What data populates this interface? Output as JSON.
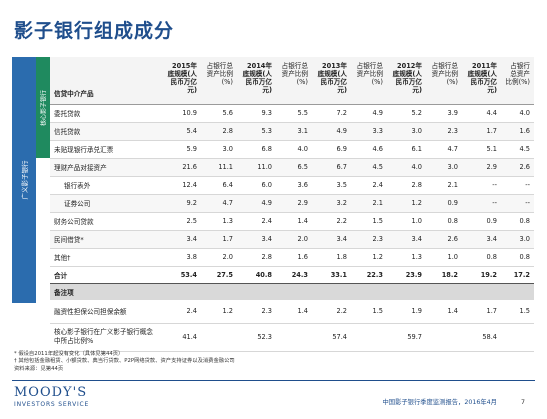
{
  "title": "影子银行组成成分",
  "side_labels": {
    "outer": "广义影子银行",
    "inner": "核心影子银行"
  },
  "header": {
    "label": "信贷中介产品",
    "columns": [
      {
        "text": "2015年底规模(人民币万亿元)",
        "year": true
      },
      {
        "text": "占银行总资产比例(%)",
        "year": false
      },
      {
        "text": "2014年底规模(人民币万亿元)",
        "year": true
      },
      {
        "text": "占银行总资产比例(%)",
        "year": false
      },
      {
        "text": "2013年底规模(人民币万亿元)",
        "year": true
      },
      {
        "text": "占银行总资产比例(%)",
        "year": false
      },
      {
        "text": "2012年底规模(人民币万亿元)",
        "year": true
      },
      {
        "text": "占银行总资产比例(%)",
        "year": false
      },
      {
        "text": "2011年底规模(人民币万亿元)",
        "year": true
      },
      {
        "text": "占银行总资产比例(%)",
        "year": false
      }
    ]
  },
  "rows": [
    {
      "label": "委托贷款",
      "values": [
        "10.9",
        "5.6",
        "9.3",
        "5.5",
        "7.2",
        "4.9",
        "5.2",
        "3.9",
        "4.4",
        "4.0"
      ]
    },
    {
      "label": "信托贷款",
      "values": [
        "5.4",
        "2.8",
        "5.3",
        "3.1",
        "4.9",
        "3.3",
        "3.0",
        "2.3",
        "1.7",
        "1.6"
      ]
    },
    {
      "label": "未贴现银行承兑汇票",
      "values": [
        "5.9",
        "3.0",
        "6.8",
        "4.0",
        "6.9",
        "4.6",
        "6.1",
        "4.7",
        "5.1",
        "4.5"
      ]
    },
    {
      "label": "理财产品对接资产",
      "values": [
        "21.6",
        "11.1",
        "11.0",
        "6.5",
        "6.7",
        "4.5",
        "4.0",
        "3.0",
        "2.9",
        "2.6"
      ]
    },
    {
      "label": "银行表外",
      "indent": true,
      "values": [
        "12.4",
        "6.4",
        "6.0",
        "3.6",
        "3.5",
        "2.4",
        "2.8",
        "2.1",
        "--",
        "--"
      ]
    },
    {
      "label": "证券公司",
      "indent": true,
      "values": [
        "9.2",
        "4.7",
        "4.9",
        "2.9",
        "3.2",
        "2.1",
        "1.2",
        "0.9",
        "--",
        "--"
      ]
    },
    {
      "label": "财务公司贷款",
      "values": [
        "2.5",
        "1.3",
        "2.4",
        "1.4",
        "2.2",
        "1.5",
        "1.0",
        "0.8",
        "0.9",
        "0.8"
      ]
    },
    {
      "label": "民间借贷*",
      "values": [
        "3.4",
        "1.7",
        "3.4",
        "2.0",
        "3.4",
        "2.3",
        "3.4",
        "2.6",
        "3.4",
        "3.0"
      ]
    },
    {
      "label": "其他†",
      "values": [
        "3.8",
        "2.0",
        "2.8",
        "1.6",
        "1.8",
        "1.2",
        "1.3",
        "1.0",
        "0.8",
        "0.8"
      ]
    }
  ],
  "total": {
    "label": "合计",
    "values": [
      "53.4",
      "27.5",
      "40.8",
      "24.3",
      "33.1",
      "22.3",
      "23.9",
      "18.2",
      "19.2",
      "17.2"
    ]
  },
  "memo_header": "备注项",
  "memo_rows": [
    {
      "label": "融资性担保公司担保余额",
      "values": [
        "2.4",
        "1.2",
        "2.3",
        "1.4",
        "2.2",
        "1.5",
        "1.9",
        "1.4",
        "1.7",
        "1.5"
      ]
    },
    {
      "label": "核心影子银行在广义影子银行概念中所占比例%",
      "values": [
        "41.4",
        "",
        "52.3",
        "",
        "57.4",
        "",
        "59.7",
        "",
        "58.4",
        ""
      ]
    }
  ],
  "notes": [
    "* 假设自2011年起没有变化（具体见第44页）",
    "† 其他包括金融租赁、小额贷款、典当行贷款、P2P网络贷款、资产支持证券以及消费金融公司",
    "资料来源：见第44页"
  ],
  "brand": {
    "main": "MOODY'S",
    "sub": "INVESTORS SERVICE"
  },
  "footer": {
    "report": "中国影子银行季度监测报告，2016年4月",
    "page": "7"
  },
  "colors": {
    "title": "#1f4e8c",
    "side_outer": "#2b6cae",
    "side_inner": "#1f8a5f"
  }
}
